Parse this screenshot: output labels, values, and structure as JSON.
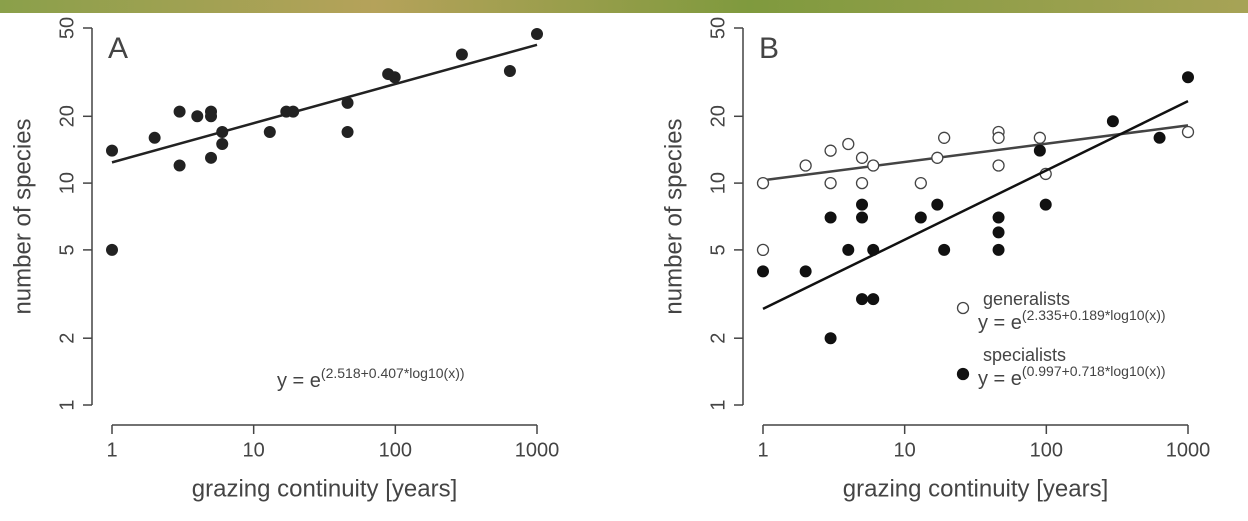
{
  "chart_data": [
    {
      "type": "scatter",
      "letter": "A",
      "x_label": "grazing continuity [years]",
      "y_label": "number of species",
      "xscale": "log",
      "yscale": "log",
      "xlim": [
        1,
        1000
      ],
      "ylim": [
        1,
        50
      ],
      "xticks": [
        1,
        10,
        100,
        1000
      ],
      "yticks": [
        1,
        2,
        5,
        10,
        20,
        50
      ],
      "color": "#222222",
      "marker": "filled",
      "x": [
        1,
        1,
        2,
        3,
        3,
        4,
        5,
        5,
        5,
        6,
        6,
        13,
        17,
        19,
        46,
        46,
        89,
        99,
        295,
        644,
        1000
      ],
      "values": [
        14,
        5,
        16,
        21,
        12,
        20,
        21,
        20,
        13,
        17,
        15,
        17,
        21,
        21,
        23,
        17,
        31,
        30,
        38,
        32,
        47
      ],
      "fit": {
        "x": [
          1,
          1000
        ],
        "values": [
          12.4,
          42
        ]
      },
      "equation": {
        "base": "y = e",
        "exponent": "(2.518+0.407*log10(x))"
      }
    },
    {
      "type": "scatter",
      "letter": "B",
      "x_label": "grazing continuity [years]",
      "y_label": "number of species",
      "xscale": "log",
      "yscale": "log",
      "xlim": [
        1,
        1000
      ],
      "ylim": [
        1,
        50
      ],
      "xticks": [
        1,
        10,
        100,
        1000
      ],
      "yticks": [
        1,
        2,
        5,
        10,
        20,
        50
      ],
      "legend": "lower right",
      "series": [
        {
          "name": "generalists",
          "color": "#444444",
          "marker": "open",
          "x": [
            1,
            1,
            2,
            3,
            3,
            4,
            5,
            5,
            6,
            13,
            17,
            19,
            46,
            46,
            46,
            90,
            99,
            1000
          ],
          "values": [
            10,
            5,
            12,
            14,
            10,
            15,
            13,
            10,
            12,
            10,
            13,
            16,
            17,
            16,
            12,
            16,
            11,
            17
          ],
          "fit": {
            "x": [
              1,
              1000
            ],
            "values": [
              10.3,
              18.2
            ]
          },
          "equation": {
            "base": "y = e",
            "exponent": "(2.335+0.189*log10(x))"
          }
        },
        {
          "name": "specialists",
          "color": "#111111",
          "marker": "filled",
          "x": [
            1,
            2,
            3,
            3,
            4,
            5,
            5,
            5,
            6,
            6,
            13,
            17,
            19,
            46,
            46,
            46,
            90,
            99,
            295,
            630,
            1000
          ],
          "values": [
            4,
            4,
            7,
            2,
            5,
            8,
            7,
            3,
            5,
            3,
            7,
            8,
            5,
            7,
            6,
            5,
            14,
            8,
            19,
            16,
            30
          ],
          "fit": {
            "x": [
              1,
              1000
            ],
            "values": [
              2.71,
              23.4
            ]
          },
          "equation": {
            "base": "y = e",
            "exponent": "(0.997+0.718*log10(x))"
          }
        }
      ]
    }
  ]
}
